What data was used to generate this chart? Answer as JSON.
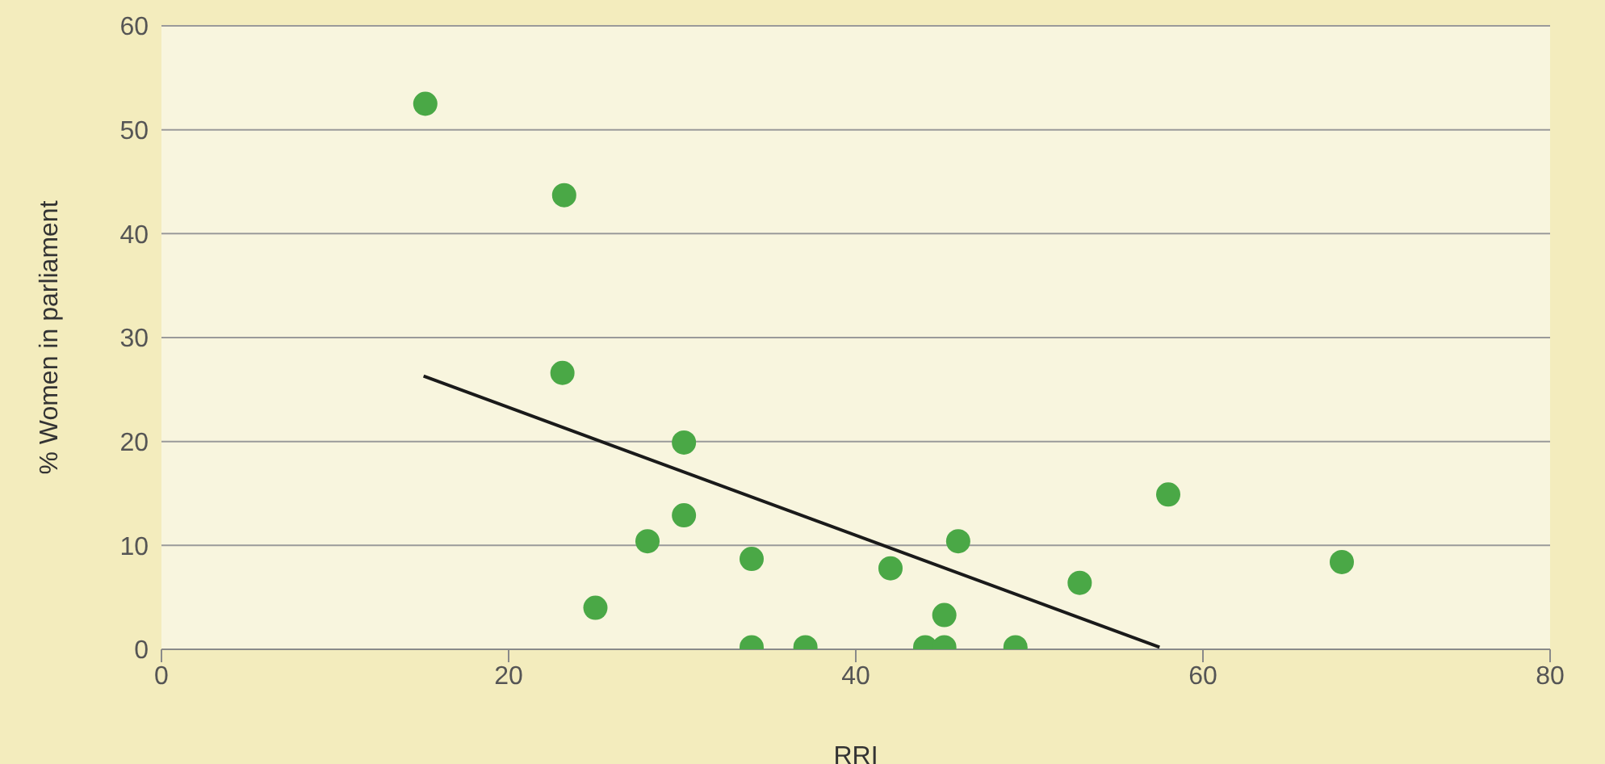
{
  "chart_data": {
    "type": "scatter",
    "xlabel": "RRI",
    "ylabel": "% Women in parliament",
    "xlim": [
      0,
      80
    ],
    "xticks": [
      0,
      20,
      40,
      60,
      80
    ],
    "ylim": [
      0,
      60
    ],
    "yticks": [
      0,
      10,
      20,
      30,
      40,
      50,
      60
    ],
    "grid": "y",
    "series": [
      {
        "marker": "circle",
        "color": "#4aa846",
        "x": [
          15.2,
          23.2,
          23.1,
          25.0,
          28.0,
          30.1,
          30.1,
          34.0,
          34.0,
          37.1,
          42.0,
          44.0,
          45.1,
          45.1,
          45.9,
          49.2,
          52.9,
          58.0,
          68.0
        ],
        "values": [
          52.5,
          43.7,
          26.6,
          4.0,
          10.4,
          19.9,
          12.9,
          8.7,
          0.2,
          0.2,
          7.8,
          0.2,
          0.2,
          3.3,
          10.4,
          0.2,
          6.4,
          14.9,
          8.4
        ]
      },
      {
        "type": "line",
        "marker": "none",
        "color": "#1a1a1a",
        "x": [
          15.1,
          57.5
        ],
        "values": [
          26.3,
          0.2
        ]
      }
    ]
  }
}
